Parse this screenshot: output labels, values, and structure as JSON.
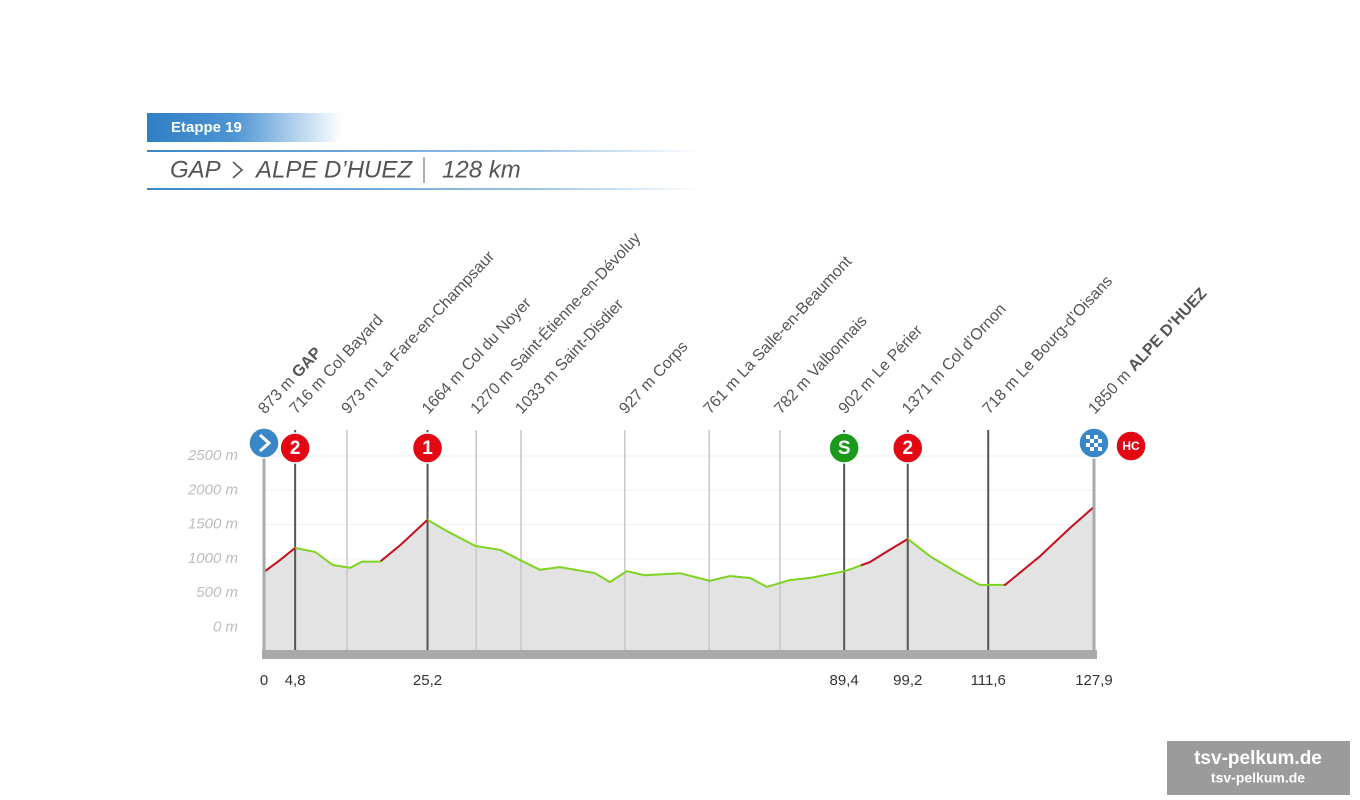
{
  "header": {
    "stage": "Etappe 19",
    "from": "GAP",
    "to": "ALPE D’HUEZ",
    "distance": "128 km"
  },
  "chart_data": {
    "type": "area",
    "x": [
      0,
      2.5,
      4.8,
      7.9,
      10.6,
      13.3,
      15.1,
      17.9,
      21,
      25.2,
      27.9,
      32.5,
      36.4,
      39.4,
      42.5,
      45.6,
      51,
      53.3,
      55.9,
      58.7,
      64.1,
      68.7,
      71.8,
      74.9,
      77.5,
      81,
      84.1,
      89.5,
      93.3,
      96.4,
      99.2,
      102.6,
      106.5,
      110.3,
      114.2,
      119.6,
      124.2,
      127.9
    ],
    "values": [
      809,
      985,
      1160,
      1100,
      910,
      870,
      960,
      960,
      1200,
      1570,
      1420,
      1190,
      1130,
      985,
      840,
      880,
      790,
      660,
      820,
      760,
      790,
      680,
      750,
      720,
      590,
      690,
      720,
      820,
      950,
      1130,
      1290,
      1040,
      820,
      620,
      620,
      1040,
      1450,
      1760
    ],
    "xlim": [
      0,
      127.9
    ],
    "ylim": [
      -330,
      2880
    ],
    "yticks": [
      {
        "value": 0,
        "label": "0 m"
      },
      {
        "value": 500,
        "label": "500 m"
      },
      {
        "value": 1000,
        "label": "1000 m"
      },
      {
        "value": 1500,
        "label": "1500 m"
      },
      {
        "value": 2000,
        "label": "2000 m"
      },
      {
        "value": 2500,
        "label": "2500 m"
      }
    ],
    "xticks": [
      0,
      {
        "value": 4.8,
        "label": "4,8"
      },
      {
        "value": 25.2,
        "label": "25,2"
      },
      {
        "value": 89.4,
        "label": "89,4"
      },
      {
        "value": 99.2,
        "label": "99,2"
      },
      {
        "value": 111.6,
        "label": "111,6"
      },
      {
        "value": 127.9,
        "label": "127,9"
      }
    ],
    "grid": true,
    "fill": "#e3e3e3",
    "line_color": "#7ed321",
    "climb_color": "#c8102e",
    "climbs": [
      [
        0,
        4.8
      ],
      [
        18,
        25.2
      ],
      [
        92,
        99.2
      ],
      [
        114,
        127.9
      ]
    ],
    "places": [
      {
        "km": 0,
        "alt": "873 m",
        "name": "GAP",
        "bold": true,
        "major": true,
        "icon": "start"
      },
      {
        "km": 4.8,
        "alt": "716 m",
        "name": "Col Bayard",
        "bold": false,
        "major": true,
        "badge": {
          "text": "2",
          "color": "#e30613"
        }
      },
      {
        "km": 12.8,
        "alt": "973 m",
        "name": "La Fare-en-Champsaur",
        "bold": false,
        "major": false
      },
      {
        "km": 25.2,
        "alt": "1664 m",
        "name": "Col du Noyer",
        "bold": false,
        "major": true,
        "badge": {
          "text": "1",
          "color": "#e30613"
        }
      },
      {
        "km": 32.7,
        "alt": "1270 m",
        "name": "Saint-Étienne-en-Dévoluy",
        "bold": false,
        "major": false
      },
      {
        "km": 39.6,
        "alt": "1033 m",
        "name": "Saint-Disdier",
        "bold": false,
        "major": false
      },
      {
        "km": 55.6,
        "alt": "927 m",
        "name": "Corps",
        "bold": false,
        "major": false
      },
      {
        "km": 68.6,
        "alt": "761 m",
        "name": "La Salle-en-Beaumont",
        "bold": false,
        "major": false
      },
      {
        "km": 79.5,
        "alt": "782 m",
        "name": "Valbonnais",
        "bold": false,
        "major": false
      },
      {
        "km": 89.4,
        "alt": "902 m",
        "name": "Le Périer",
        "bold": false,
        "major": true,
        "badge": {
          "text": "S",
          "color": "#1a9a1a"
        }
      },
      {
        "km": 99.2,
        "alt": "1371 m",
        "name": "Col d’Ornon",
        "bold": false,
        "major": true,
        "badge": {
          "text": "2",
          "color": "#e30613"
        }
      },
      {
        "km": 111.6,
        "alt": "718 m",
        "name": "Le Bourg-d’Oisans",
        "bold": false,
        "major": true
      },
      {
        "km": 127.9,
        "alt": "1850 m",
        "name": "ALPE D’HUEZ",
        "bold": true,
        "major": true,
        "icon": "finish",
        "badge": {
          "text": "HC",
          "color": "#e30613"
        }
      }
    ]
  },
  "watermark": {
    "line1": "tsv-pelkum.de",
    "line2": "tsv-pelkum.de"
  }
}
